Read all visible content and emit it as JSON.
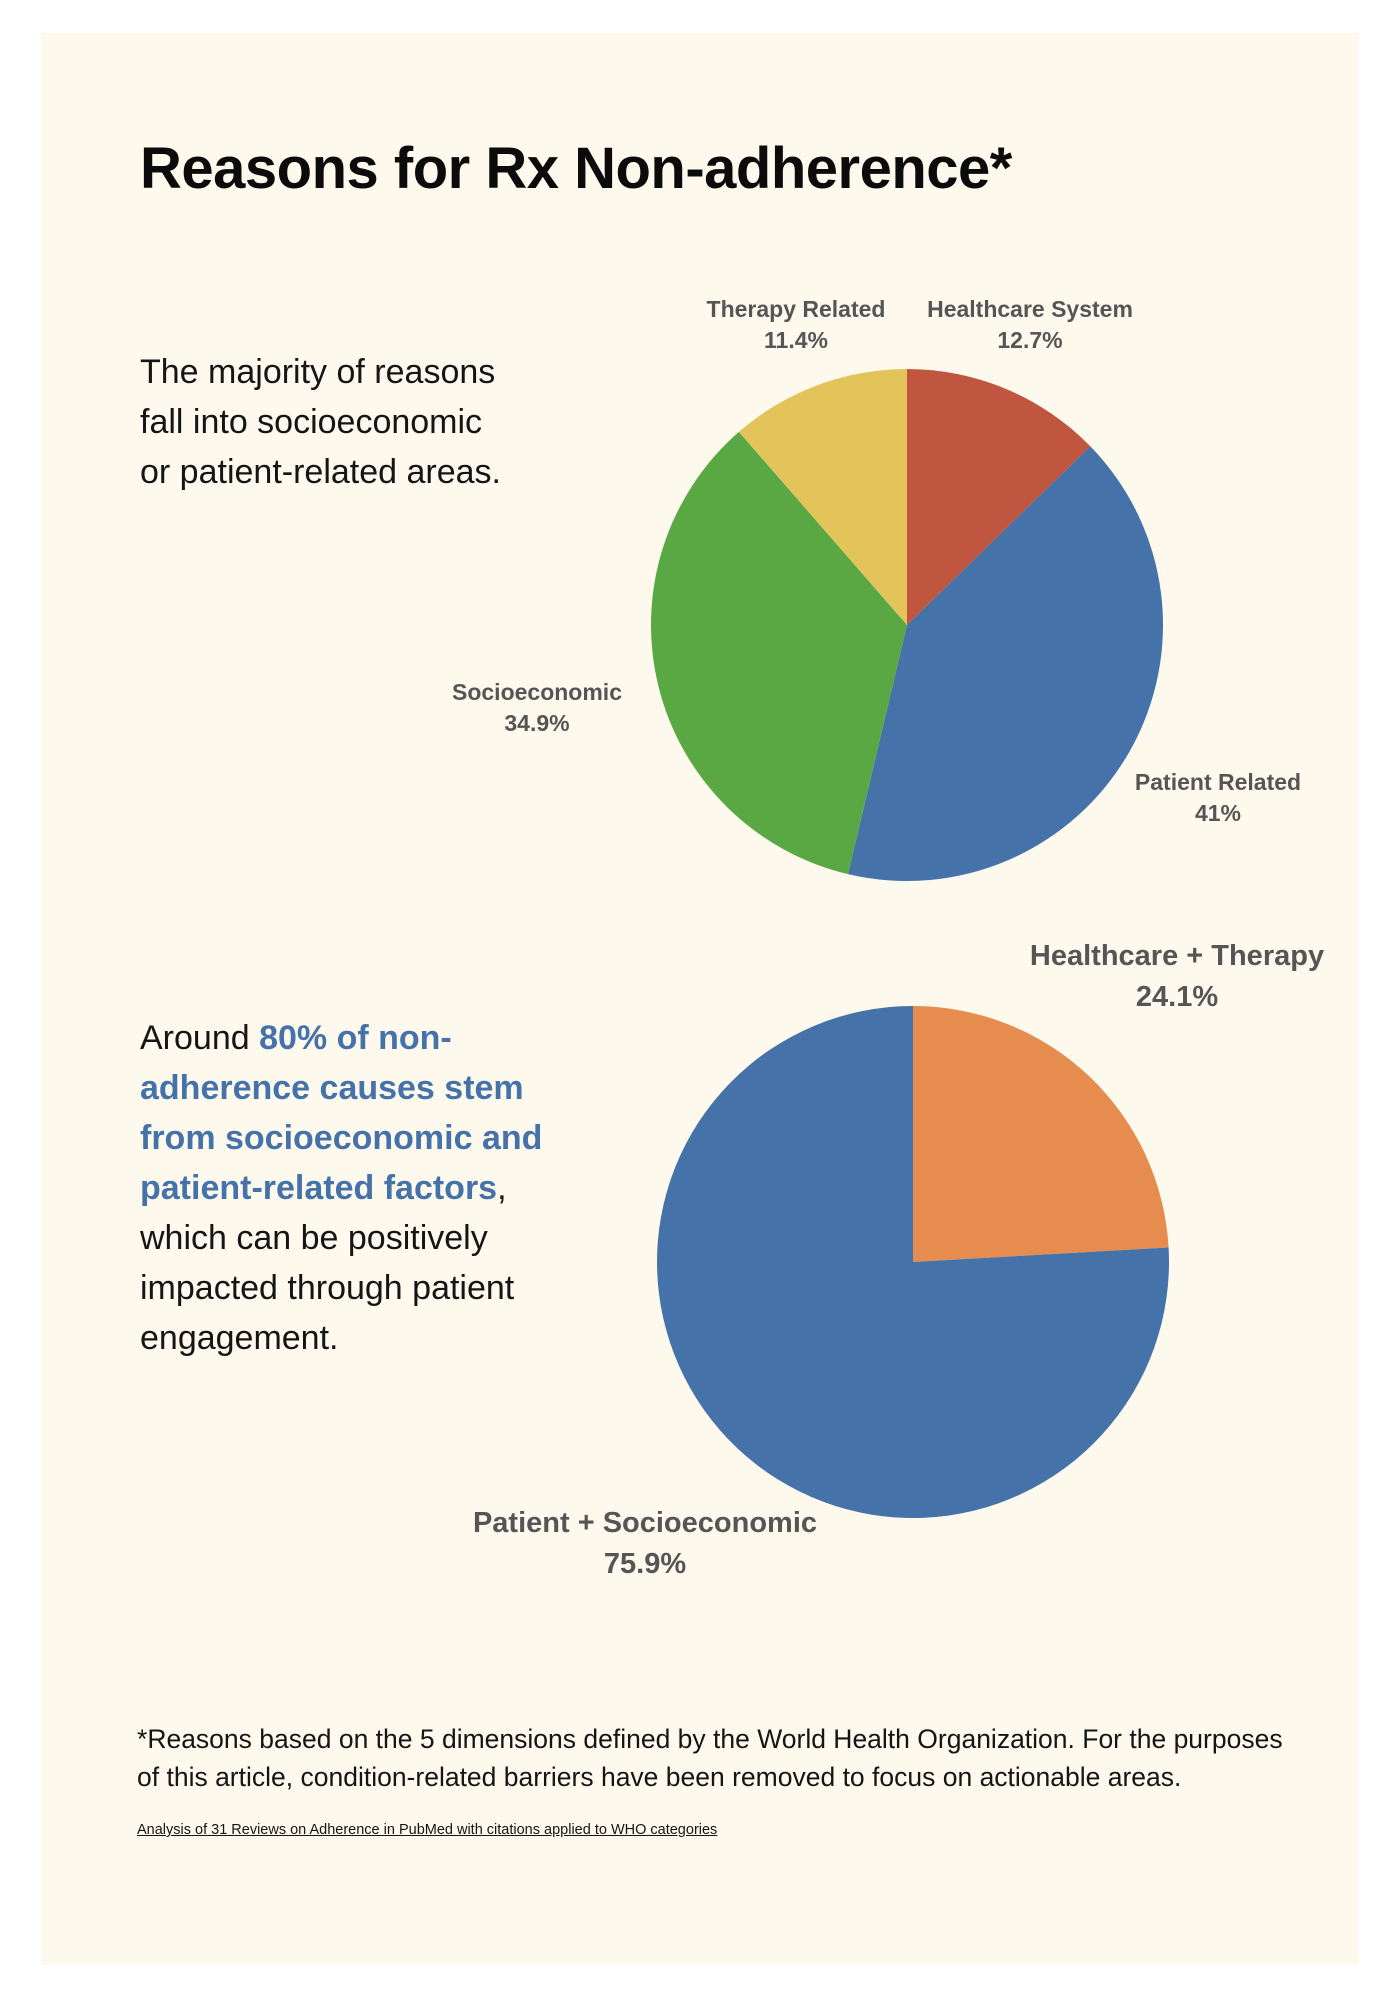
{
  "title": "Reasons for Rx Non-adherence*",
  "intro_text": "The majority of reasons fall into socioeconomic or patient-related areas.",
  "summary": {
    "prefix": "Around ",
    "highlight": "80% of non-adherence causes stem from socioeconomic and patient-related factors",
    "suffix": ", which can be positively impacted through patient engagement."
  },
  "footnote": "*Reasons based on the 5 dimensions defined by the World Health Organization. For the purposes of this article, condition-related barriers have been removed to focus on actionable areas.",
  "source_link": "Analysis of 31 Reviews on Adherence in PubMed with citations applied to WHO categories",
  "colors": {
    "background": "#fdf9ed",
    "highlight": "#4472a9",
    "label": "#555555"
  },
  "chart_data": [
    {
      "type": "pie",
      "title": "",
      "start_angle": "12 o'clock",
      "direction": "clockwise",
      "legend": "none",
      "slices": [
        {
          "label": "Healthcare System",
          "value": 12.7,
          "value_label": "12.7%",
          "color": "#c0563f"
        },
        {
          "label": "Patient Related",
          "value": 41,
          "value_label": "41%",
          "color": "#4472a9"
        },
        {
          "label": "Socioeconomic",
          "value": 34.9,
          "value_label": "34.9%",
          "color": "#5aa843"
        },
        {
          "label": "Therapy Related",
          "value": 11.4,
          "value_label": "11.4%",
          "color": "#e2c45a"
        }
      ]
    },
    {
      "type": "pie",
      "title": "",
      "start_angle": "12 o'clock",
      "direction": "clockwise",
      "legend": "none",
      "slices": [
        {
          "label": "Healthcare + Therapy",
          "value": 24.1,
          "value_label": "24.1%",
          "color": "#e68c4e"
        },
        {
          "label": "Patient + Socioeconomic",
          "value": 75.9,
          "value_label": "75.9%",
          "color": "#4472a9"
        }
      ]
    }
  ]
}
